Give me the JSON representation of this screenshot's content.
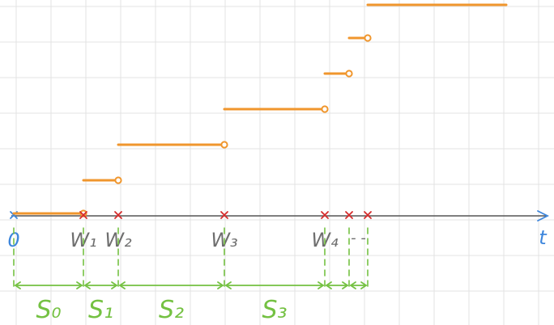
{
  "colors": {
    "grid": "#e3e3e3",
    "axis": "#555555",
    "axis_arrow": "#3d86dc",
    "steps": "#f0962d",
    "events": "#d52b2b",
    "label_dark": "#6e6e6e",
    "label_blue": "#3d86dc",
    "intervals": "#74c142"
  },
  "axis": {
    "origin_label": "0",
    "time_label": "t"
  },
  "events": [
    {
      "label": "W₁",
      "t": 1
    },
    {
      "label": "W₂",
      "t": 2
    },
    {
      "label": "W₃",
      "t": 5
    },
    {
      "label": "W₄",
      "t": 8
    },
    {
      "label": "",
      "t": 8.7
    },
    {
      "label": "",
      "t": 9.3
    }
  ],
  "ellipsis": "- -",
  "steps": [
    {
      "level": 0,
      "from": 0,
      "to": 1
    },
    {
      "level": 1,
      "from": 1,
      "to": 2
    },
    {
      "level": 2,
      "from": 2,
      "to": 5
    },
    {
      "level": 3,
      "from": 5,
      "to": 8
    },
    {
      "level": 4,
      "from": 8,
      "to": 8.7
    },
    {
      "level": 5,
      "from": 8.7,
      "to": 9.3
    },
    {
      "level": 6,
      "from": 9.3,
      "to": 13
    }
  ],
  "intervals": [
    {
      "label": "S₀",
      "from": 0,
      "to": 1
    },
    {
      "label": "S₁",
      "from": 1,
      "to": 2
    },
    {
      "label": "S₂",
      "from": 2,
      "to": 5
    },
    {
      "label": "S₃",
      "from": 5,
      "to": 8
    },
    {
      "label": "",
      "from": 8,
      "to": 8.7
    },
    {
      "label": "",
      "from": 8.7,
      "to": 9.3
    }
  ]
}
